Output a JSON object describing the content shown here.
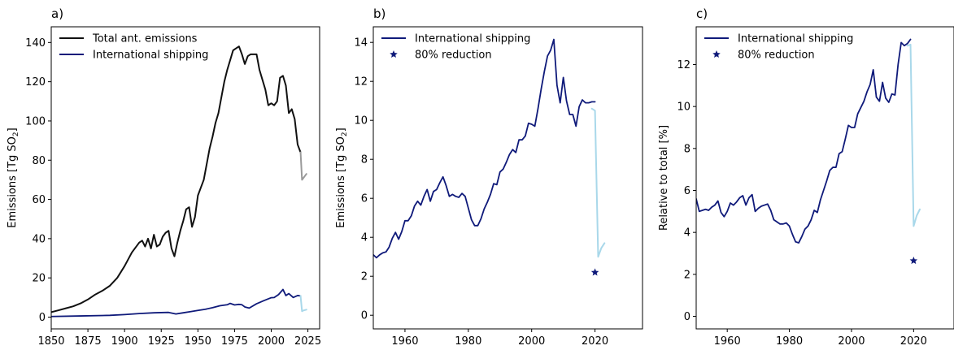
{
  "colors": {
    "total": "#111111",
    "total_dashed": "#9a9a9a",
    "shipping": "#0f1a7a",
    "shipping_reduction": "#a9d8ea",
    "star": "#0f1a7a"
  },
  "chart_data": [
    {
      "type": "line",
      "panel_label": "a)",
      "xlabel": "",
      "ylabel": "Emissions [Tg SO",
      "ylabel_sub": "2",
      "ylabel_end": "]",
      "xlim": [
        1850,
        2033
      ],
      "ylim": [
        -6,
        148
      ],
      "xticks": [
        1850,
        1875,
        1900,
        1925,
        1950,
        1975,
        2000,
        2025
      ],
      "yticks": [
        0,
        20,
        40,
        60,
        80,
        100,
        120,
        140
      ],
      "legend": [
        "Total ant. emissions",
        "International shipping"
      ],
      "series": [
        {
          "name": "Total ant. emissions",
          "role": "total",
          "x": [
            1850,
            1855,
            1860,
            1865,
            1870,
            1875,
            1880,
            1885,
            1890,
            1895,
            1900,
            1905,
            1908,
            1910,
            1912,
            1914,
            1916,
            1918,
            1920,
            1922,
            1924,
            1926,
            1928,
            1930,
            1932,
            1934,
            1936,
            1938,
            1940,
            1942,
            1944,
            1946,
            1948,
            1950,
            1952,
            1954,
            1956,
            1958,
            1960,
            1962,
            1964,
            1966,
            1968,
            1970,
            1972,
            1974,
            1976,
            1978,
            1980,
            1982,
            1984,
            1986,
            1988,
            1990,
            1992,
            1994,
            1996,
            1998,
            2000,
            2002,
            2004,
            2006,
            2008,
            2010,
            2012,
            2014,
            2016,
            2018,
            2020
          ],
          "y": [
            2.5,
            3.5,
            4.5,
            5.5,
            7,
            9,
            11.5,
            13.5,
            16,
            20,
            26,
            33,
            36,
            38,
            39,
            36,
            40,
            35,
            42,
            36,
            37,
            41,
            43,
            44,
            35,
            31,
            38,
            44,
            49,
            55,
            56,
            46,
            51,
            62,
            66,
            70,
            78,
            86,
            92,
            99,
            104,
            112,
            120,
            126,
            131,
            136,
            137,
            138,
            134,
            129,
            133,
            134,
            134,
            134,
            126,
            121,
            116,
            108,
            109,
            108,
            110,
            122,
            123,
            118,
            104,
            106,
            101,
            88,
            84
          ]
        },
        {
          "name": "Total projection",
          "role": "total_dashed",
          "x": [
            2020,
            2021,
            2022,
            2023,
            2024
          ],
          "y": [
            84,
            70,
            71,
            72,
            73
          ]
        },
        {
          "name": "International shipping",
          "role": "shipping",
          "x": [
            1850,
            1870,
            1890,
            1900,
            1910,
            1920,
            1930,
            1935,
            1940,
            1945,
            1950,
            1955,
            1960,
            1965,
            1970,
            1972,
            1975,
            1978,
            1980,
            1982,
            1985,
            1990,
            1995,
            2000,
            2002,
            2005,
            2008,
            2010,
            2012,
            2015,
            2018,
            2020
          ],
          "y": [
            0.3,
            0.6,
            0.9,
            1.3,
            1.8,
            2.2,
            2.4,
            1.6,
            2.2,
            2.8,
            3.4,
            4,
            4.8,
            5.8,
            6.3,
            7,
            6.2,
            6.5,
            6.3,
            5.2,
            4.6,
            6.8,
            8.4,
            9.9,
            10,
            11.5,
            14.1,
            11,
            12,
            10,
            11,
            10.8
          ]
        },
        {
          "name": "Shipping 80% reduction",
          "role": "shipping_reduction",
          "x": [
            2020,
            2021,
            2022,
            2023,
            2024
          ],
          "y": [
            10.8,
            3.0,
            3.4,
            3.6,
            3.8
          ]
        }
      ]
    },
    {
      "type": "line",
      "panel_label": "b)",
      "xlabel": "",
      "ylabel": "Emissions [Tg SO",
      "ylabel_sub": "2",
      "ylabel_end": "]",
      "xlim": [
        1950,
        2035
      ],
      "ylim": [
        -0.7,
        14.8
      ],
      "xticks": [
        1960,
        1980,
        2000,
        2020
      ],
      "yticks": [
        0,
        2,
        4,
        6,
        8,
        10,
        12,
        14
      ],
      "legend": [
        "International shipping",
        "80% reduction"
      ],
      "series": [
        {
          "name": "International shipping",
          "role": "shipping",
          "x": [
            1950,
            1951,
            1952,
            1953,
            1954,
            1955,
            1956,
            1957,
            1958,
            1959,
            1960,
            1961,
            1962,
            1963,
            1964,
            1965,
            1966,
            1967,
            1968,
            1969,
            1970,
            1971,
            1972,
            1973,
            1974,
            1975,
            1976,
            1977,
            1978,
            1979,
            1980,
            1981,
            1982,
            1983,
            1984,
            1985,
            1986,
            1987,
            1988,
            1989,
            1990,
            1991,
            1992,
            1993,
            1994,
            1995,
            1996,
            1997,
            1998,
            1999,
            2000,
            2001,
            2002,
            2003,
            2004,
            2005,
            2006,
            2007,
            2008,
            2009,
            2010,
            2011,
            2012,
            2013,
            2014,
            2015,
            2016,
            2017,
            2018,
            2019,
            2020
          ],
          "y": [
            3.1,
            2.95,
            3.1,
            3.2,
            3.25,
            3.5,
            3.95,
            4.25,
            3.9,
            4.3,
            4.85,
            4.85,
            5.1,
            5.6,
            5.85,
            5.65,
            6.1,
            6.45,
            5.85,
            6.35,
            6.45,
            6.8,
            7.1,
            6.65,
            6.1,
            6.2,
            6.1,
            6.05,
            6.25,
            6.1,
            5.5,
            4.9,
            4.6,
            4.6,
            4.95,
            5.45,
            5.8,
            6.2,
            6.75,
            6.7,
            7.35,
            7.5,
            7.85,
            8.25,
            8.5,
            8.35,
            9.0,
            9.0,
            9.2,
            9.85,
            9.8,
            9.7,
            10.6,
            11.6,
            12.5,
            13.3,
            13.6,
            14.15,
            11.8,
            10.9,
            12.2,
            11.0,
            10.3,
            10.3,
            9.7,
            10.7,
            11.05,
            10.9,
            10.9,
            10.95,
            10.95
          ]
        },
        {
          "name": "80% reduction",
          "role": "shipping_reduction",
          "x": [
            2019,
            2020,
            2021,
            2022,
            2023
          ],
          "y": [
            10.6,
            10.5,
            3.0,
            3.45,
            3.7
          ]
        }
      ],
      "markers": [
        {
          "x": 2020,
          "y": 2.2
        }
      ]
    },
    {
      "type": "line",
      "panel_label": "c)",
      "xlabel": "",
      "ylabel": "Relative to total [%]",
      "xlim": [
        1950,
        2033
      ],
      "ylim": [
        -0.6,
        13.8
      ],
      "xticks": [
        1960,
        1980,
        2000,
        2020
      ],
      "yticks": [
        0,
        2,
        4,
        6,
        8,
        10,
        12
      ],
      "legend": [
        "International shipping",
        "80% reduction"
      ],
      "series": [
        {
          "name": "International shipping",
          "role": "shipping",
          "x": [
            1950,
            1951,
            1952,
            1953,
            1954,
            1955,
            1956,
            1957,
            1958,
            1959,
            1960,
            1961,
            1962,
            1963,
            1964,
            1965,
            1966,
            1967,
            1968,
            1969,
            1970,
            1971,
            1972,
            1973,
            1974,
            1975,
            1976,
            1977,
            1978,
            1979,
            1980,
            1981,
            1982,
            1983,
            1984,
            1985,
            1986,
            1987,
            1988,
            1989,
            1990,
            1991,
            1992,
            1993,
            1994,
            1995,
            1996,
            1997,
            1998,
            1999,
            2000,
            2001,
            2002,
            2003,
            2004,
            2005,
            2006,
            2007,
            2008,
            2009,
            2010,
            2011,
            2012,
            2013,
            2014,
            2015,
            2016,
            2017,
            2018,
            2019
          ],
          "y": [
            5.6,
            5.0,
            5.05,
            5.1,
            5.05,
            5.2,
            5.3,
            5.5,
            4.95,
            4.75,
            5.0,
            5.4,
            5.3,
            5.45,
            5.65,
            5.75,
            5.3,
            5.65,
            5.8,
            5.0,
            5.15,
            5.25,
            5.3,
            5.35,
            5.05,
            4.6,
            4.5,
            4.4,
            4.4,
            4.45,
            4.3,
            3.9,
            3.55,
            3.5,
            3.8,
            4.15,
            4.3,
            4.6,
            5.05,
            4.95,
            5.55,
            6.0,
            6.45,
            6.95,
            7.1,
            7.1,
            7.75,
            7.85,
            8.45,
            9.1,
            9.0,
            9.0,
            9.65,
            9.95,
            10.25,
            10.7,
            11.05,
            11.75,
            10.45,
            10.25,
            11.15,
            10.4,
            10.2,
            10.6,
            10.55,
            12.0,
            13.05,
            12.9,
            13.0,
            13.2
          ]
        },
        {
          "name": "80% reduction",
          "role": "shipping_reduction",
          "x": [
            2018,
            2019,
            2020,
            2021,
            2022
          ],
          "y": [
            12.9,
            12.95,
            4.3,
            4.8,
            5.1
          ]
        }
      ],
      "markers": [
        {
          "x": 2020,
          "y": 2.65
        }
      ]
    }
  ]
}
